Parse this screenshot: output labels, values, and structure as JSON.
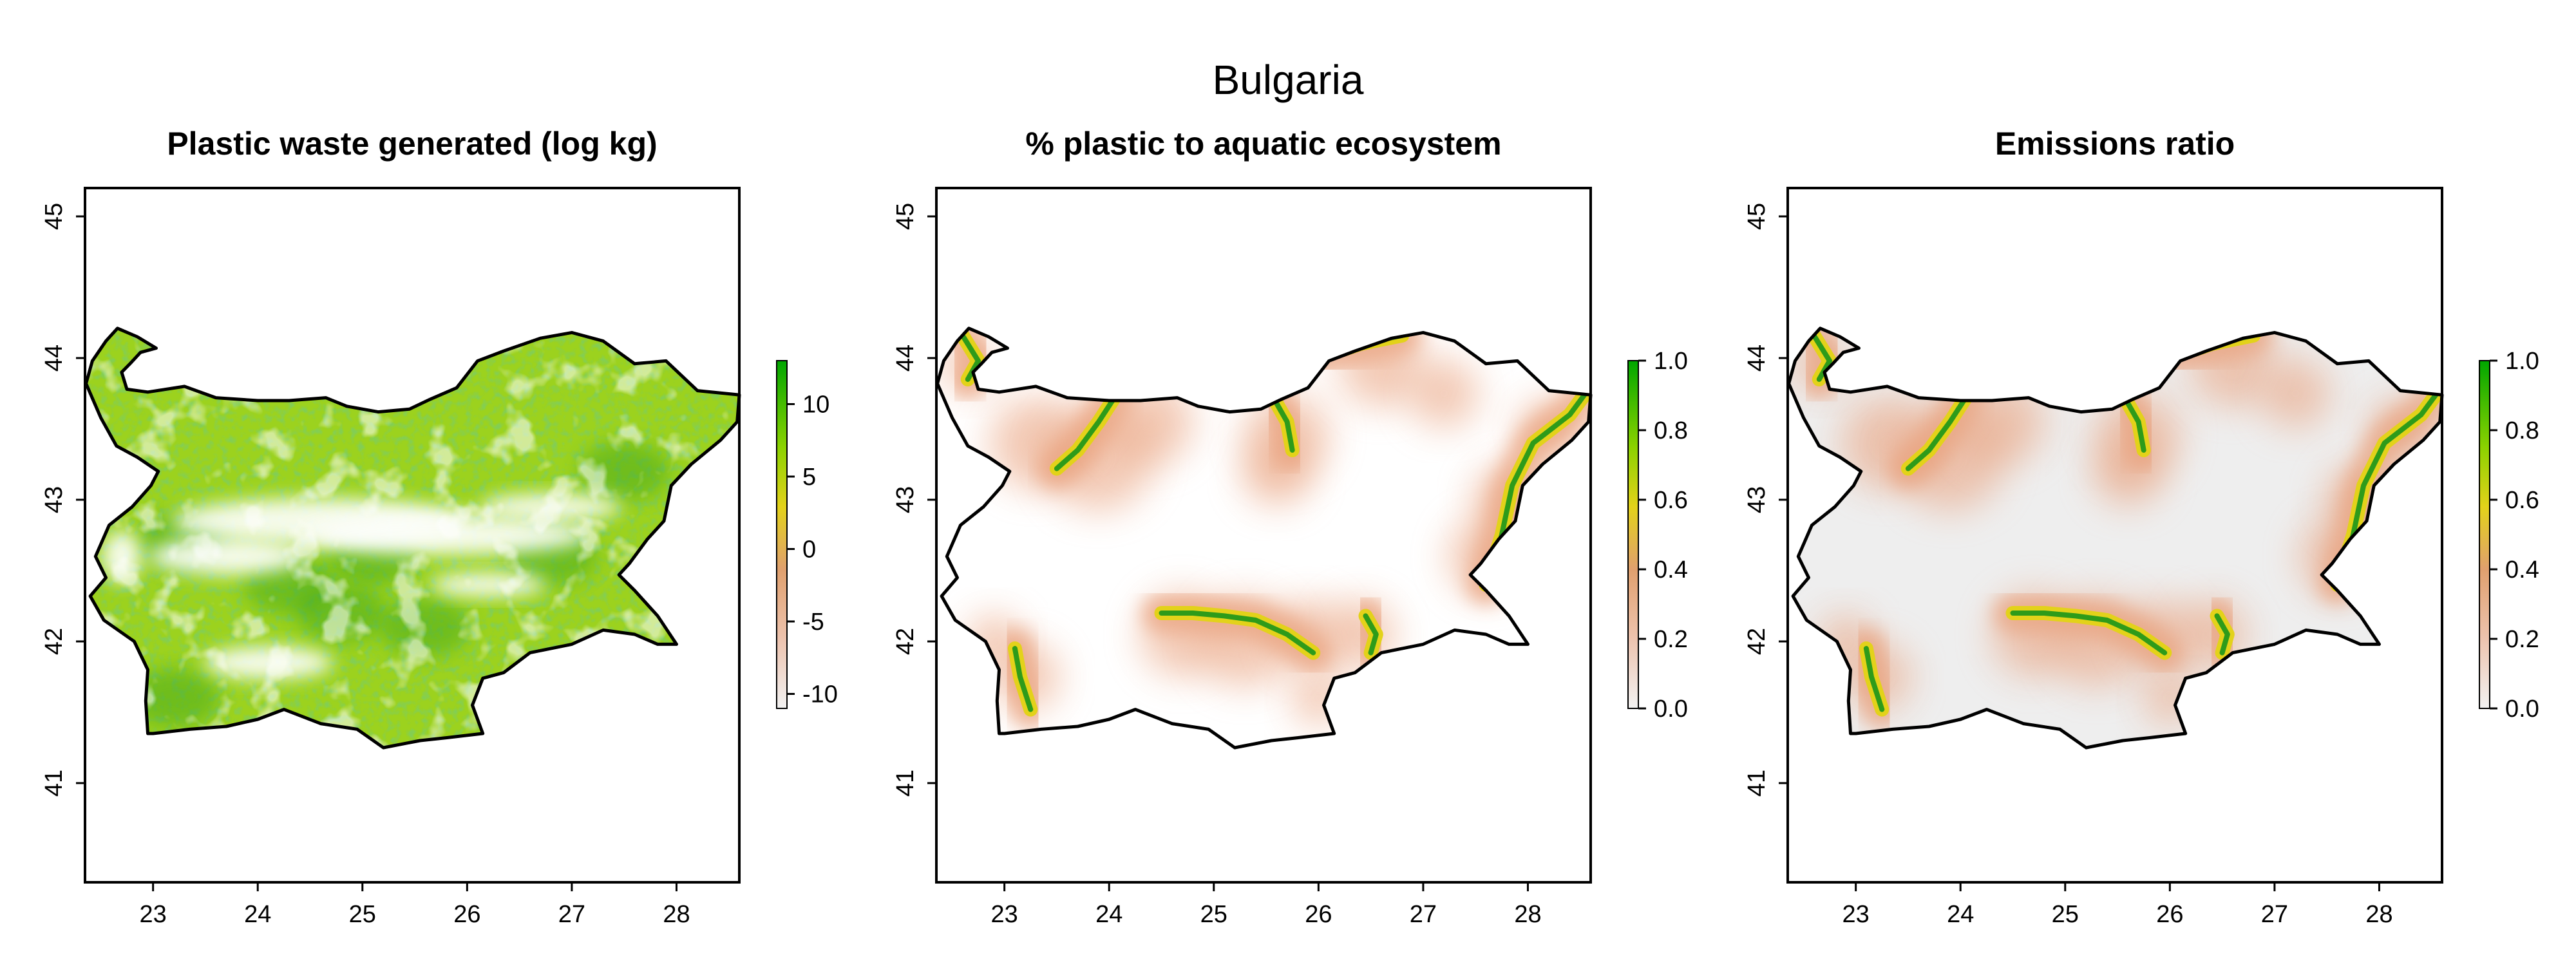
{
  "figure_title": "Bulgaria",
  "panels": [
    {
      "title": "Plastic waste generated (log kg)",
      "x_ticks": [
        "23",
        "24",
        "25",
        "26",
        "27",
        "28"
      ],
      "y_ticks": [
        "41",
        "42",
        "43",
        "44",
        "45"
      ],
      "legend_ticks": [
        "10",
        "5",
        "0",
        "-5",
        "-10"
      ],
      "legend_range": [
        -11,
        13
      ],
      "fill": "waste"
    },
    {
      "title": "% plastic to aquatic ecosystem",
      "x_ticks": [
        "23",
        "24",
        "25",
        "26",
        "27",
        "28"
      ],
      "y_ticks": [
        "41",
        "42",
        "43",
        "44",
        "45"
      ],
      "legend_ticks": [
        "1.0",
        "0.8",
        "0.6",
        "0.4",
        "0.2",
        "0.0"
      ],
      "legend_range": [
        0,
        1
      ],
      "fill": "aquatic"
    },
    {
      "title": "Emissions ratio",
      "x_ticks": [
        "23",
        "24",
        "25",
        "26",
        "27",
        "28"
      ],
      "y_ticks": [
        "41",
        "42",
        "43",
        "44",
        "45"
      ],
      "legend_ticks": [
        "1.0",
        "0.8",
        "0.6",
        "0.4",
        "0.2",
        "0.0"
      ],
      "legend_range": [
        0,
        1
      ],
      "fill": "emissions"
    }
  ],
  "map_extent": {
    "lon": [
      22.35,
      28.6
    ],
    "lat": [
      40.3,
      45.2
    ]
  },
  "colors": {
    "high": "#00a600",
    "mid_high": "#8cd200",
    "mid": "#e6e600",
    "mid_low": "#e8b07a",
    "low": "#f2f2f2",
    "waste_base": "#9cd21e",
    "waste_dark": "#3aa51b",
    "land_gray": "#eeeeee",
    "river": "#2e9b1a",
    "river_glow": "#e3d21a",
    "salmon": "#e9a07c"
  }
}
